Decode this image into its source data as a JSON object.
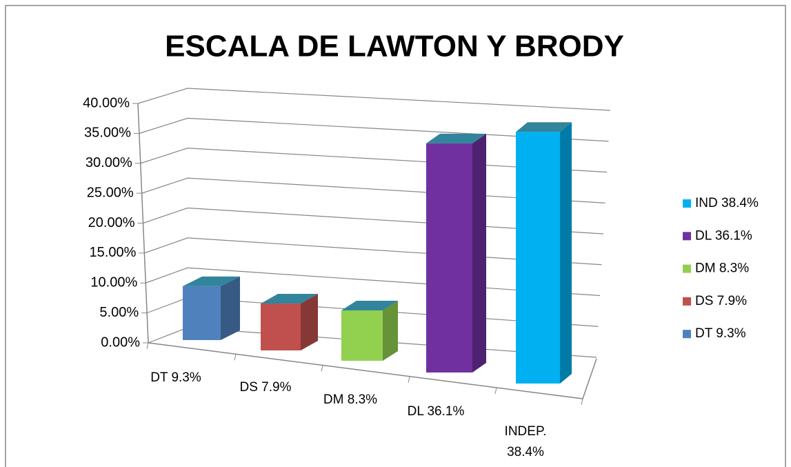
{
  "chart_data": {
    "type": "bar3d",
    "title": "ESCALA DE LAWTON Y BRODY",
    "categories": [
      "DT 9.3%",
      "DS 7.9%",
      "DM 8.3%",
      "DL  36.1%",
      "INDEP.\n38.4%"
    ],
    "values": [
      9.3,
      7.9,
      8.3,
      36.1,
      38.4
    ],
    "colors": [
      "#4f81bd",
      "#c0504d",
      "#92d050",
      "#7030a0",
      "#00b0f0"
    ],
    "top_color": "#31849b",
    "ylim": [
      0,
      40
    ],
    "yticks": [
      {
        "value": 0,
        "label": "0.00%"
      },
      {
        "value": 5,
        "label": "5.00%"
      },
      {
        "value": 10,
        "label": "10.00%"
      },
      {
        "value": 15,
        "label": "15.00%"
      },
      {
        "value": 20,
        "label": "20.00%"
      },
      {
        "value": 25,
        "label": "25.00%"
      },
      {
        "value": 30,
        "label": "30.00%"
      },
      {
        "value": 35,
        "label": "35.00%"
      },
      {
        "value": 40,
        "label": "40.00%"
      }
    ],
    "grid": true,
    "legend": {
      "position": "right",
      "entries": [
        "IND 38.4%",
        "DL 36.1%",
        "DM 8.3%",
        "DS 7.9%",
        "DT 9.3%"
      ]
    }
  }
}
